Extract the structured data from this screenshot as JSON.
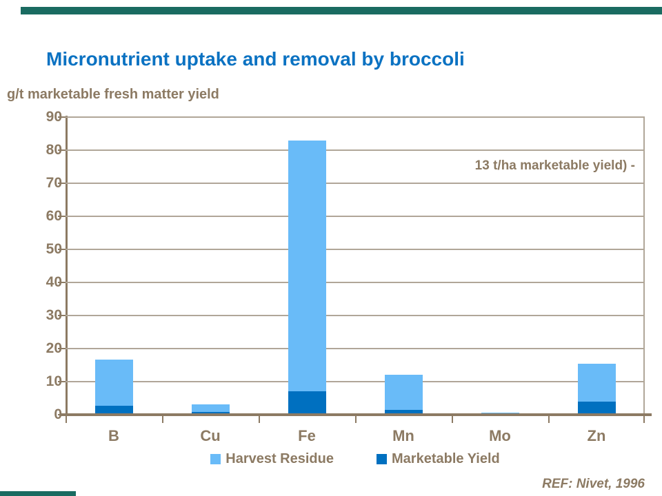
{
  "slide": {
    "title": "Micronutrient uptake and removal by broccoli",
    "subtitle": "g/t marketable fresh matter yield",
    "annotation": "13 t/ha marketable yield) -",
    "reference": "REF: Nivet, 1996"
  },
  "colors": {
    "title_blue": "#0B72C2",
    "text_brown": "#8C7A63",
    "gridline_tan": "#B0A698",
    "axis_brown": "#8C7A63",
    "harvest_residue_blue": "#69BBF8",
    "marketable_yield_blue": "#0070C0",
    "accent_teal": "#1A6B61"
  },
  "chart_data": {
    "type": "bar",
    "stacked": true,
    "title": "Micronutrient uptake and removal by broccoli",
    "ylabel": "g/t marketable fresh matter yield",
    "xlabel": "",
    "categories": [
      "B",
      "Cu",
      "Fe",
      "Mn",
      "Mo",
      "Zn"
    ],
    "series": [
      {
        "name": "Marketable Yield",
        "color": "#0070C0",
        "values": [
          2.8,
          0.8,
          7,
          1.5,
          0.1,
          4
        ]
      },
      {
        "name": "Harvest Residue",
        "color": "#69BBF8",
        "values": [
          13.8,
          2.4,
          76,
          10.5,
          0.45,
          11.5
        ]
      }
    ],
    "totals": [
      16.6,
      3.2,
      83,
      12,
      0.55,
      15.5
    ],
    "ylim": [
      0,
      90
    ],
    "ytick_step": 10,
    "yticks": [
      0,
      10,
      20,
      30,
      40,
      50,
      60,
      70,
      80,
      90
    ],
    "grid": true,
    "legend_position": "bottom",
    "annotation": "13 t/ha marketable yield) -"
  },
  "legend": {
    "items": [
      {
        "label": "Harvest Residue",
        "color": "#69BBF8"
      },
      {
        "label": "Marketable Yield",
        "color": "#0070C0"
      }
    ]
  }
}
